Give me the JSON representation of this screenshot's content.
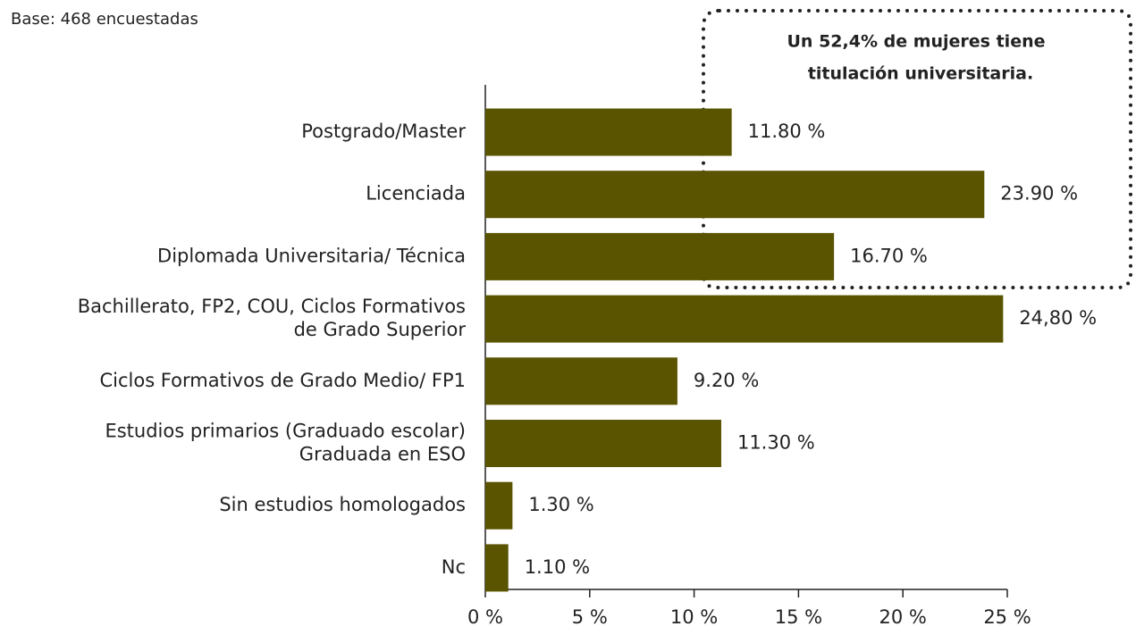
{
  "chart_data": {
    "type": "barh",
    "subtitle": "Base: 468 encuestadas",
    "annotation": [
      "Un 52,4% de mujeres tiene",
      "titulación universitaria."
    ],
    "categories": [
      "Postgrado/Master",
      "Licenciada",
      "Diplomada Universitaria/ Técnica",
      "Bachillerato, FP2, COU, Ciclos Formativos\nde Grado Superior",
      "Ciclos Formativos de Grado Medio/ FP1",
      "Estudios primarios (Graduado escolar)\nGraduada en ESO",
      "Sin estudios homologados",
      "Nc"
    ],
    "values": [
      11.8,
      23.9,
      16.7,
      24.8,
      9.2,
      11.3,
      1.3,
      1.1
    ],
    "value_labels": [
      "11.80 %",
      "23.90 %",
      "16.70 %",
      "24,80 %",
      "9.20 %",
      "11.30 %",
      "1.30 %",
      "1.10 %"
    ],
    "color": "#5a5300",
    "xlim": [
      0,
      25
    ],
    "xticks": [
      {
        "value": 0,
        "label": "0 %"
      },
      {
        "value": 5,
        "label": "5 %"
      },
      {
        "value": 10,
        "label": "10 %"
      },
      {
        "value": 15,
        "label": "15 %"
      },
      {
        "value": 20,
        "label": "20 %"
      },
      {
        "value": 25,
        "label": "25 %"
      }
    ]
  }
}
